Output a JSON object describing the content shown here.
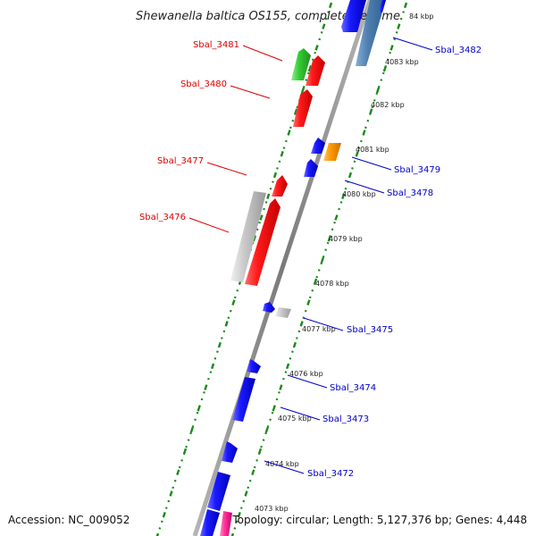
{
  "title": "Shewanella baltica OS155, complete genome",
  "footer": {
    "accession": "Accession: NC_009052",
    "summary": "Topology: circular; Length: 5,127,376 bp; Genes: 4,448"
  },
  "colors": {
    "red": "#ff1a1a",
    "blue": "#1a1aff",
    "green": "#33cc33",
    "orange": "#ff9900",
    "gray": "#c0c0c0",
    "steel": "#4f7fb0",
    "pink": "#ff3399",
    "tick": "#1a8a1a",
    "backbone": "#8f8f8f",
    "label_red": "#dd0000",
    "label_blue": "#0000cc"
  },
  "kbp_labels": [
    "84 kbp",
    "4083 kbp",
    "4082 kbp",
    "4081 kbp",
    "4080 kbp",
    "4079 kbp",
    "4078 kbp",
    "4077 kbp",
    "4076 kbp",
    "4075 kbp",
    "4074 kbp",
    "4073 kbp"
  ],
  "genes_left": [
    {
      "name": "Sbal_3481"
    },
    {
      "name": "Sbal_3480"
    },
    {
      "name": "Sbal_3477"
    },
    {
      "name": "Sbal_3476"
    }
  ],
  "genes_right": [
    {
      "name": "Sbal_3482"
    },
    {
      "name": "Sbal_3479"
    },
    {
      "name": "Sbal_3478"
    },
    {
      "name": "Sbal_3475"
    },
    {
      "name": "Sbal_3474"
    },
    {
      "name": "Sbal_3473"
    },
    {
      "name": "Sbal_3472"
    }
  ]
}
